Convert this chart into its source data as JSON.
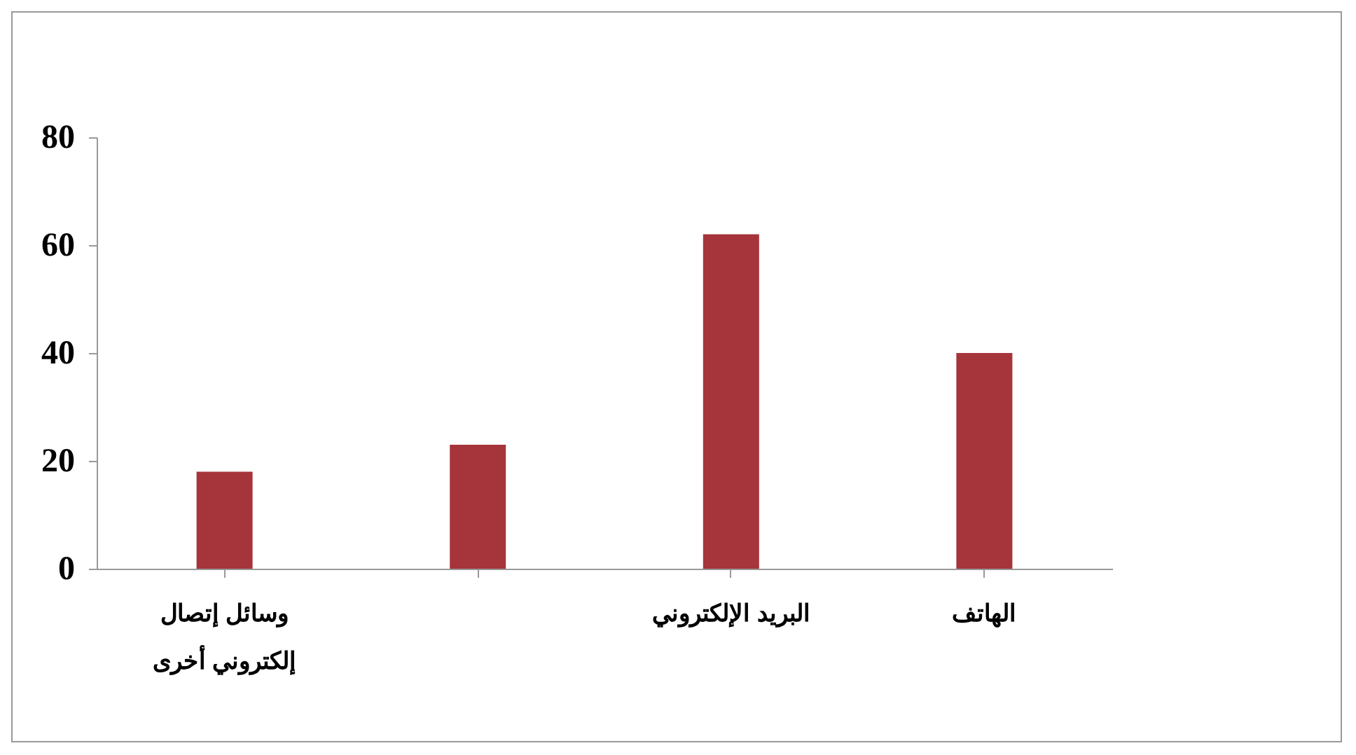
{
  "chart_data": {
    "type": "bar",
    "categories": [
      "وسائل إتصال\nإلكتروني أخرى",
      null,
      "البريد الإلكتروني",
      "الهاتف"
    ],
    "values": [
      18,
      23,
      62,
      40
    ],
    "color": "#a5353b",
    "ylim": [
      0,
      80
    ],
    "yticks": [
      0,
      20,
      40,
      60,
      80
    ],
    "grid": false
  }
}
